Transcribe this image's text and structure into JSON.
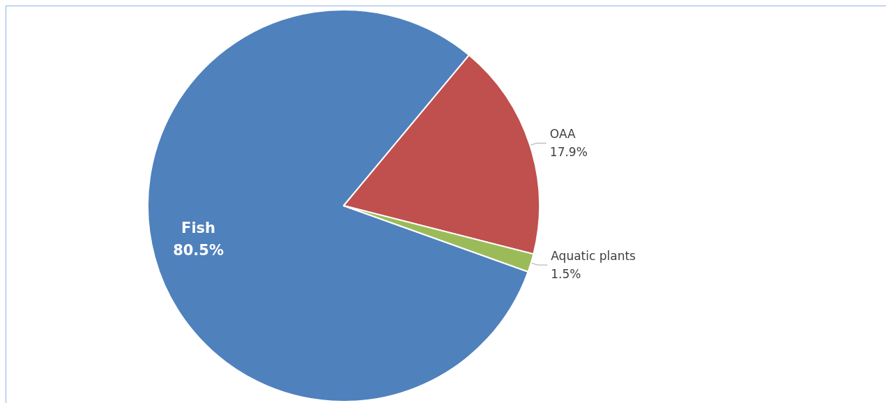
{
  "chart_data": {
    "type": "pie",
    "categories": [
      "Fish",
      "OAA",
      "Aquatic plants"
    ],
    "values": [
      80.5,
      17.9,
      1.5
    ],
    "value_labels": [
      "80.5%",
      "17.9%",
      "1.5%"
    ],
    "colors": [
      "#4f81bd",
      "#c0504d",
      "#9bbb59"
    ],
    "legend": false
  }
}
